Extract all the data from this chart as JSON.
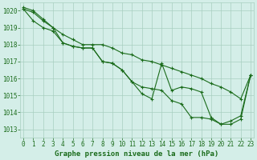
{
  "title": "Graphe pression niveau de la mer (hPa)",
  "xlabel_hours": [
    0,
    1,
    2,
    3,
    4,
    5,
    6,
    7,
    8,
    9,
    10,
    11,
    12,
    13,
    14,
    15,
    16,
    17,
    18,
    19,
    20,
    21,
    22,
    23
  ],
  "series": [
    [
      1020.1,
      1019.9,
      1019.4,
      1019.0,
      1018.1,
      1017.9,
      1017.8,
      1017.8,
      1017.0,
      1016.9,
      1016.5,
      1015.8,
      1015.5,
      1015.4,
      1015.3,
      1014.7,
      1014.5,
      1013.7,
      1013.7,
      1013.6,
      1013.3,
      1013.5,
      1013.8,
      1016.2
    ],
    [
      1020.1,
      1019.4,
      1019.0,
      1018.8,
      1018.1,
      1017.9,
      1017.8,
      1017.8,
      1017.0,
      1016.9,
      1016.5,
      1015.8,
      1015.1,
      1014.8,
      1016.9,
      1015.3,
      1015.5,
      1015.4,
      1015.2,
      1013.7,
      1013.3,
      1013.3,
      1013.6,
      1016.2
    ],
    [
      1020.2,
      1020.0,
      1019.5,
      1019.0,
      1018.6,
      1018.3,
      1018.0,
      1018.0,
      1018.0,
      1017.8,
      1017.5,
      1017.4,
      1017.1,
      1017.0,
      1016.8,
      1016.6,
      1016.4,
      1016.2,
      1016.0,
      1015.7,
      1015.5,
      1015.2,
      1014.8,
      1016.2
    ]
  ],
  "line_color": "#1a6b1a",
  "marker": "+",
  "background_color": "#d4eee8",
  "grid_color": "#a8cfc0",
  "ylim": [
    1012.5,
    1020.5
  ],
  "yticks": [
    1013,
    1014,
    1015,
    1016,
    1017,
    1018,
    1019,
    1020
  ],
  "xlim": [
    -0.3,
    23.3
  ],
  "title_color": "#1a6b1a",
  "title_fontsize": 6.5,
  "tick_fontsize": 5.5,
  "line_width": 0.8,
  "marker_size": 3.0,
  "marker_ew": 0.8
}
